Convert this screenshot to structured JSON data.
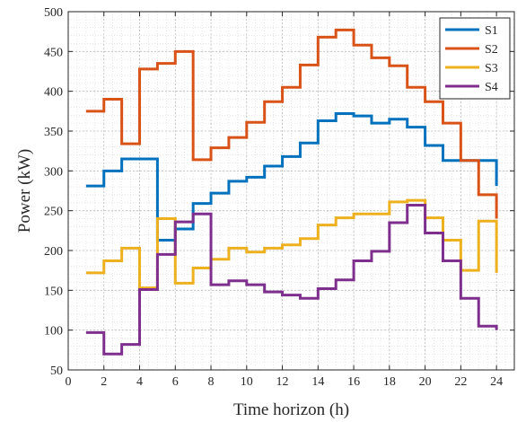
{
  "chart_data": {
    "type": "line",
    "step": true,
    "title": "",
    "xlabel": "Time horizon (h)",
    "ylabel": "Power (kW)",
    "xlim": [
      0,
      25
    ],
    "ylim": [
      50,
      500
    ],
    "xticks": [
      0,
      2,
      4,
      6,
      8,
      10,
      12,
      14,
      16,
      18,
      20,
      22,
      24
    ],
    "yticks": [
      50,
      100,
      150,
      200,
      250,
      300,
      350,
      400,
      450,
      500
    ],
    "grid": true,
    "minor_grid": true,
    "legend_position": "top-right",
    "x": [
      1,
      2,
      3,
      4,
      5,
      6,
      7,
      8,
      9,
      10,
      11,
      12,
      13,
      14,
      15,
      16,
      17,
      18,
      19,
      20,
      21,
      22,
      23,
      24
    ],
    "series": [
      {
        "name": "S1",
        "color": "#0072BD",
        "values": [
          281,
          300,
          315,
          315,
          213,
          227,
          259,
          272,
          287,
          292,
          306,
          318,
          335,
          363,
          372,
          369,
          360,
          365,
          355,
          332,
          313,
          313,
          313,
          281
        ]
      },
      {
        "name": "S2",
        "color": "#D95319",
        "values": [
          375,
          390,
          334,
          428,
          435,
          450,
          314,
          329,
          342,
          361,
          387,
          405,
          433,
          468,
          477,
          458,
          442,
          432,
          405,
          387,
          360,
          313,
          270,
          240
        ]
      },
      {
        "name": "S3",
        "color": "#EDB120",
        "values": [
          172,
          187,
          203,
          153,
          240,
          159,
          178,
          189,
          203,
          198,
          203,
          207,
          215,
          232,
          241,
          246,
          246,
          261,
          263,
          241,
          213,
          175,
          237,
          172
        ]
      },
      {
        "name": "S4",
        "color": "#7E2F8E",
        "values": [
          97,
          70,
          82,
          151,
          195,
          236,
          246,
          157,
          162,
          157,
          148,
          144,
          140,
          152,
          163,
          187,
          199,
          235,
          257,
          222,
          187,
          140,
          105,
          100
        ]
      }
    ]
  }
}
